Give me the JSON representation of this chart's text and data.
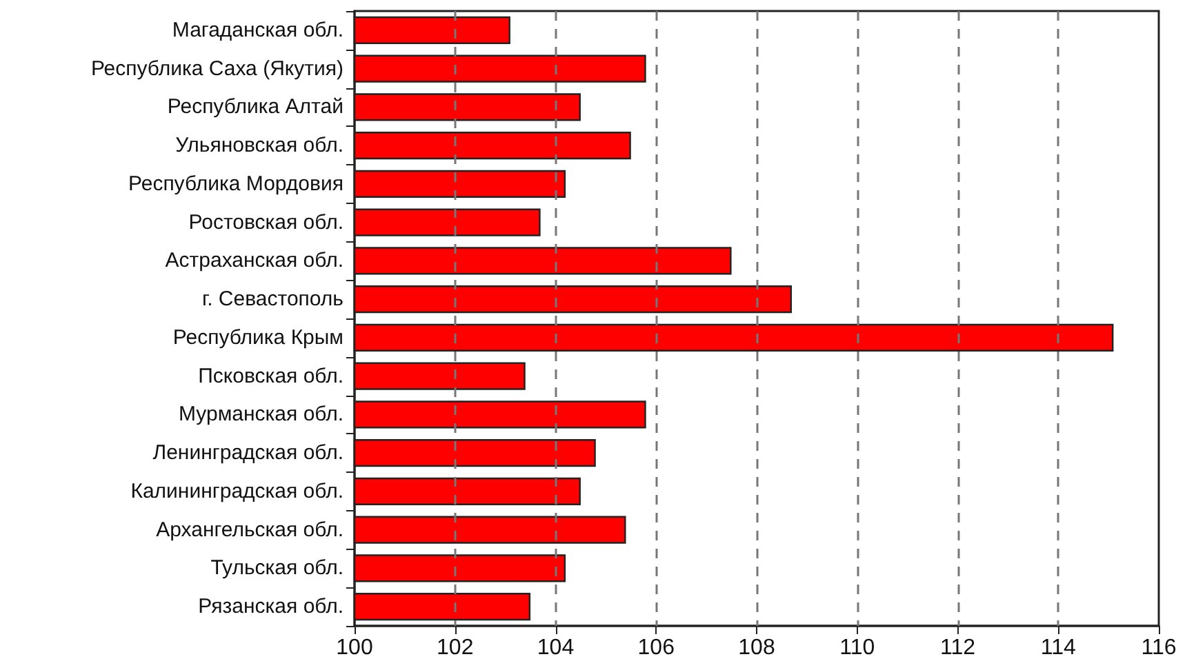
{
  "chart_data": {
    "type": "bar",
    "orientation": "horizontal",
    "categories": [
      "Магаданская обл.",
      "Республика Саха (Якутия)",
      "Республика Алтай",
      "Ульяновская обл.",
      "Республика Мордовия",
      "Ростовская обл.",
      "Астраханская обл.",
      "г. Севастополь",
      "Республика Крым",
      "Псковская обл.",
      "Мурманская обл.",
      "Ленинградская обл.",
      "Калининградская обл.",
      "Архангельская обл.",
      "Тульская обл.",
      "Рязанская обл."
    ],
    "values": [
      103.1,
      105.8,
      104.5,
      105.5,
      104.2,
      103.7,
      107.5,
      108.7,
      115.1,
      103.4,
      105.8,
      104.8,
      104.5,
      105.4,
      104.2,
      103.5
    ],
    "color": "#ff0000",
    "xlim": [
      100,
      116
    ],
    "xticks": [
      100,
      102,
      104,
      106,
      108,
      110,
      112,
      114,
      116
    ],
    "grid": "x"
  }
}
